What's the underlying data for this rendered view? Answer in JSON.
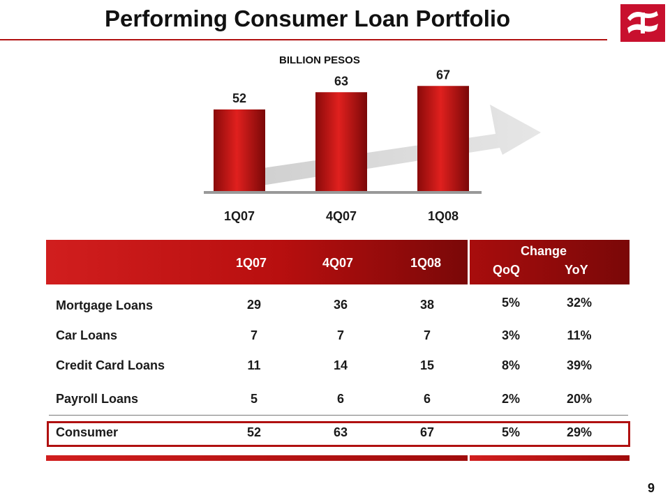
{
  "slide": {
    "title": "Performing Consumer Loan Portfolio",
    "subtitle": "BILLION PESOS",
    "page_number": "9"
  },
  "colors": {
    "accent": "#c8102e",
    "arrow": "#d8d8d8"
  },
  "chart_data": {
    "type": "bar",
    "categories": [
      "1Q07",
      "4Q07",
      "1Q08"
    ],
    "values": [
      52,
      63,
      67
    ],
    "data_labels": [
      "52",
      "63",
      "67"
    ],
    "title": "",
    "xlabel": "",
    "ylabel": "",
    "ylim": [
      0,
      80
    ],
    "grid": false
  },
  "table": {
    "header_periods": [
      "1Q07",
      "4Q07",
      "1Q08"
    ],
    "change_label": "Change",
    "change_cols": [
      "QoQ",
      "YoY"
    ],
    "rows": [
      {
        "label": "Mortgage Loans",
        "values": [
          "29",
          "36",
          "38"
        ],
        "qoq": "5%",
        "yoy": "32%"
      },
      {
        "label": "Car Loans",
        "values": [
          "7",
          "7",
          "7"
        ],
        "qoq": "3%",
        "yoy": "11%"
      },
      {
        "label": "Credit Card Loans",
        "values": [
          "11",
          "14",
          "15"
        ],
        "qoq": "8%",
        "yoy": "39%"
      },
      {
        "label": "Payroll Loans",
        "values": [
          "5",
          "6",
          "6"
        ],
        "qoq": "2%",
        "yoy": "20%"
      }
    ],
    "total": {
      "label": "Consumer",
      "values": [
        "52",
        "63",
        "67"
      ],
      "qoq": "5%",
      "yoy": "29%"
    }
  }
}
